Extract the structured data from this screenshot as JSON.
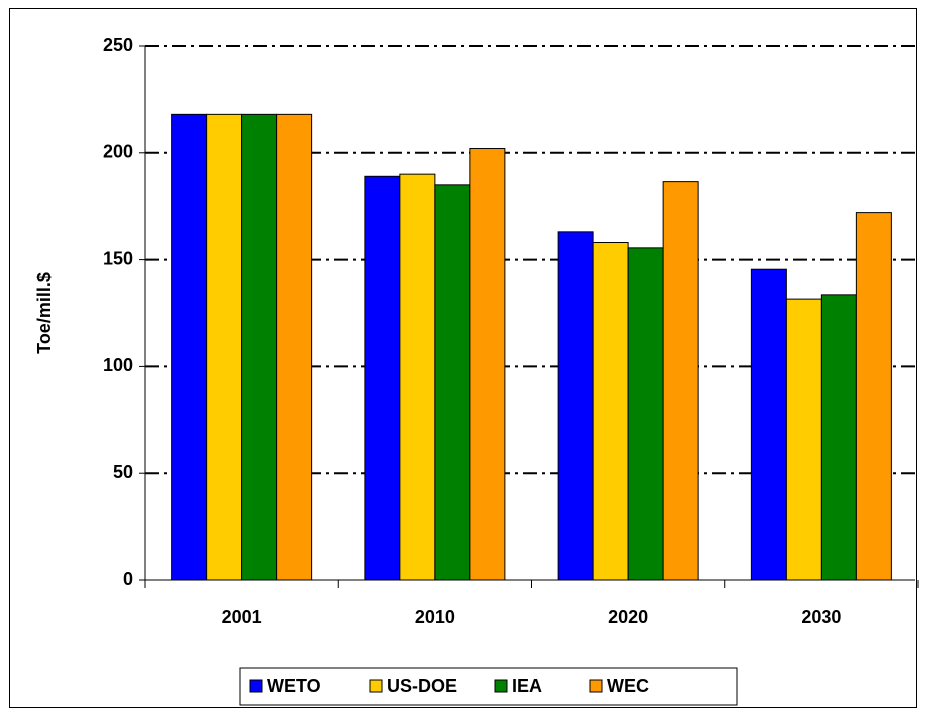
{
  "chart_data": {
    "type": "bar",
    "y_label": "Toe/mill.$",
    "categories": [
      "2001",
      "2010",
      "2020",
      "2030"
    ],
    "series": [
      {
        "name": "WETO",
        "color": "#0000ff",
        "values": [
          218,
          189,
          163,
          145.5
        ]
      },
      {
        "name": "US-DOE",
        "color": "#ffcc00",
        "values": [
          218,
          190,
          158,
          131.5
        ]
      },
      {
        "name": "IEA",
        "color": "#008000",
        "values": [
          218,
          185,
          155.5,
          133.5
        ]
      },
      {
        "name": "WEC",
        "color": "#ff9900",
        "values": [
          218,
          202,
          186.5,
          172
        ]
      }
    ],
    "ylim": [
      0,
      250
    ],
    "yticks": [
      0,
      50,
      100,
      150,
      200,
      250
    ],
    "grid": true,
    "legend": "bottom"
  }
}
